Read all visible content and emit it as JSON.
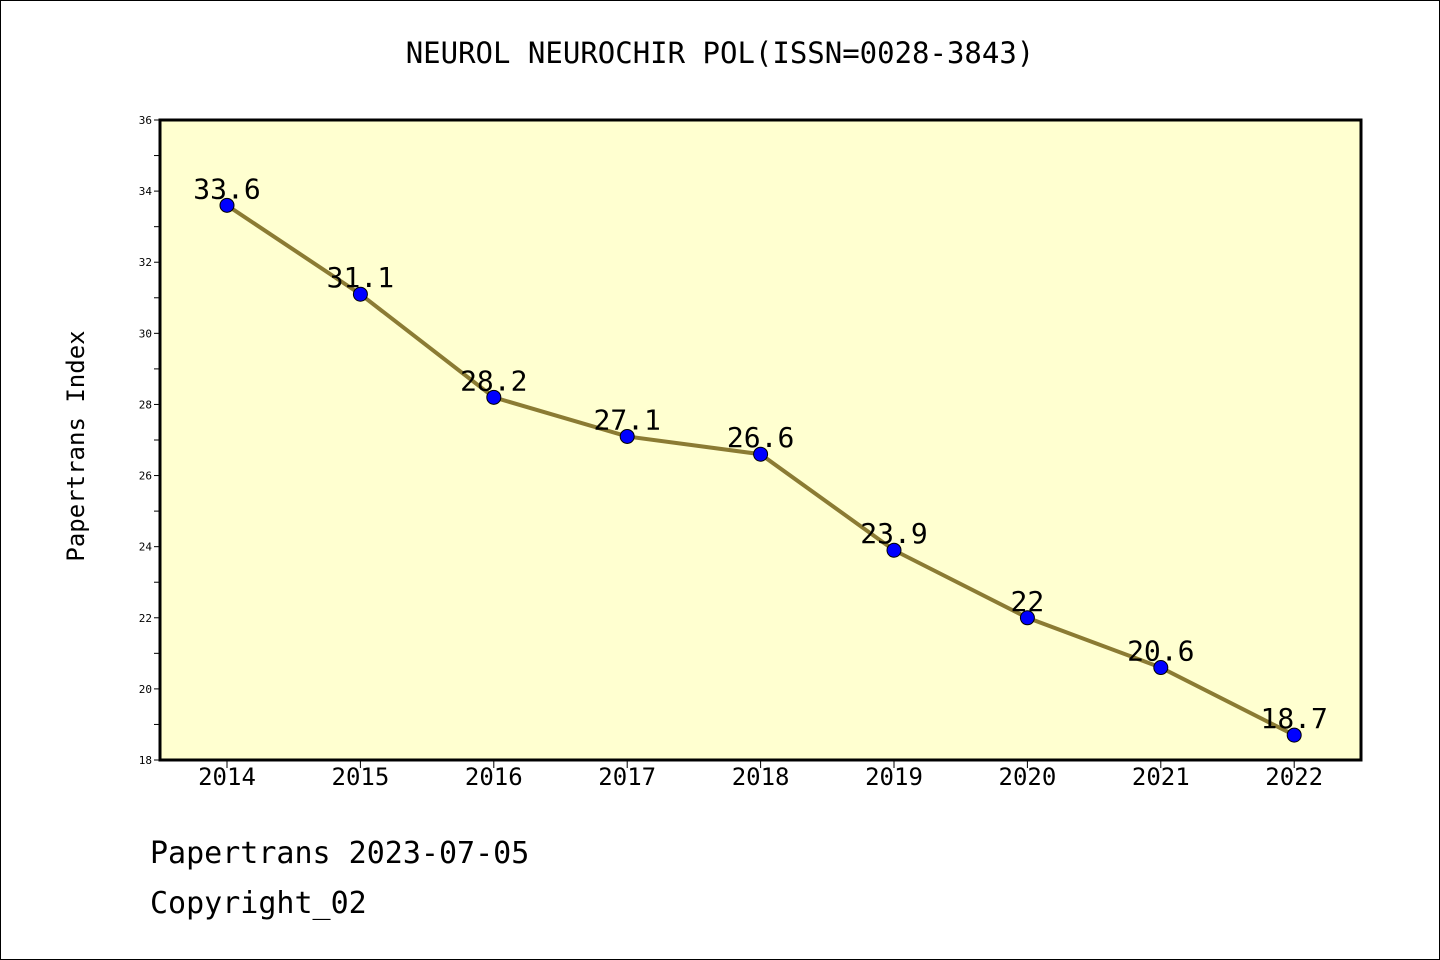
{
  "footer": {
    "date_line": "Papertrans 2023-07-05",
    "copyright": "Copyright_02"
  },
  "colors": {
    "plot_background": "#ffffd0",
    "line": "#8b7b33",
    "marker": "#0000ff"
  },
  "chart_data": {
    "type": "line",
    "title": "NEUROL NEUROCHIR POL(ISSN=0028-3843)",
    "xlabel": "",
    "ylabel": "Papertrans Index",
    "categories": [
      "2014",
      "2015",
      "2016",
      "2017",
      "2018",
      "2019",
      "2020",
      "2021",
      "2022"
    ],
    "values": [
      33.6,
      31.1,
      28.2,
      27.1,
      26.6,
      23.9,
      22,
      20.6,
      18.7
    ],
    "data_labels": [
      "33.6",
      "31.1",
      "28.2",
      "27.1",
      "26.6",
      "23.9",
      "22",
      "20.6",
      "18.7"
    ],
    "ylim": [
      18,
      36
    ],
    "yticks": [
      "18",
      "20",
      "22",
      "24",
      "26",
      "28",
      "30",
      "32",
      "34",
      "36"
    ],
    "grid": false,
    "legend": "none"
  }
}
